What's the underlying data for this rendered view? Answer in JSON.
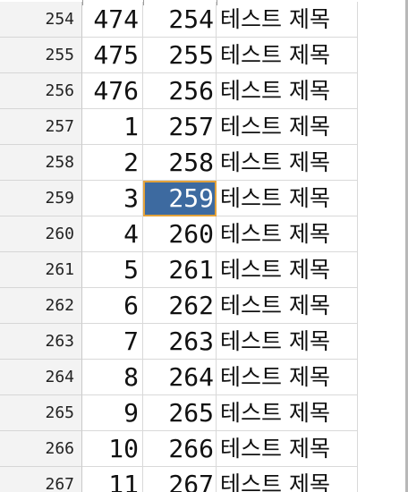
{
  "sheet": {
    "rows": [
      {
        "row_number": "254",
        "col_b": "474",
        "col_c": "254",
        "col_d": "테스트 제목"
      },
      {
        "row_number": "255",
        "col_b": "475",
        "col_c": "255",
        "col_d": "테스트 제목"
      },
      {
        "row_number": "256",
        "col_b": "476",
        "col_c": "256",
        "col_d": "테스트 제목"
      },
      {
        "row_number": "257",
        "col_b": "1",
        "col_c": "257",
        "col_d": "테스트 제목"
      },
      {
        "row_number": "258",
        "col_b": "2",
        "col_c": "258",
        "col_d": "테스트 제목"
      },
      {
        "row_number": "259",
        "col_b": "3",
        "col_c": "259",
        "col_d": "테스트 제목",
        "selected_column": "c"
      },
      {
        "row_number": "260",
        "col_b": "4",
        "col_c": "260",
        "col_d": "테스트 제목"
      },
      {
        "row_number": "261",
        "col_b": "5",
        "col_c": "261",
        "col_d": "테스트 제목"
      },
      {
        "row_number": "262",
        "col_b": "6",
        "col_c": "262",
        "col_d": "테스트 제목"
      },
      {
        "row_number": "263",
        "col_b": "7",
        "col_c": "263",
        "col_d": "테스트 제목"
      },
      {
        "row_number": "264",
        "col_b": "8",
        "col_c": "264",
        "col_d": "테스트 제목"
      },
      {
        "row_number": "265",
        "col_b": "9",
        "col_c": "265",
        "col_d": "테스트 제목"
      },
      {
        "row_number": "266",
        "col_b": "10",
        "col_c": "266",
        "col_d": "테스트 제목"
      },
      {
        "row_number": "267",
        "col_b": "11",
        "col_c": "267",
        "col_d": "테스트 제목"
      }
    ]
  },
  "colors": {
    "selection_fill": "#3d6aa0",
    "selection_border": "#e3a23b"
  }
}
